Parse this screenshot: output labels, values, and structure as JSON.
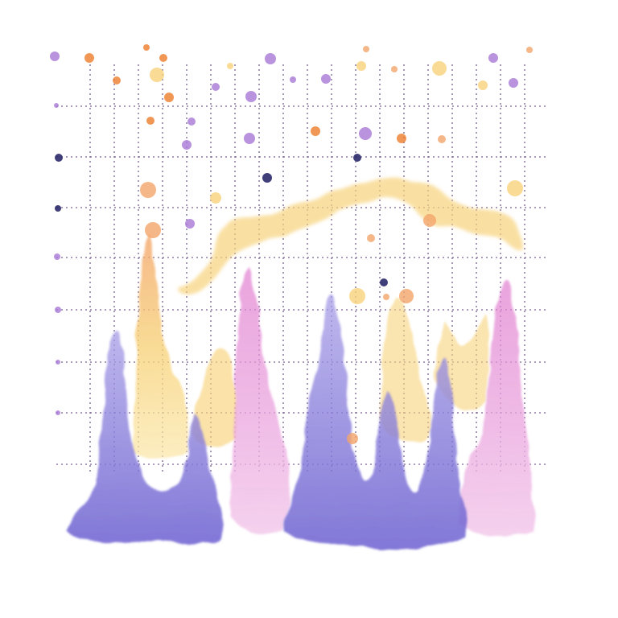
{
  "artwork": {
    "style": "watercolor",
    "background_color": "#ffffff",
    "grid_color": "#4a2d6b",
    "palette": {
      "lavender": "#8f86de",
      "lavender_dark": "#6b5fd0",
      "pink": "#e6a3dc",
      "pink_light": "#f2c6ea",
      "yellow": "#f7d27a",
      "yellow_light": "#fbe6a6",
      "peach": "#f4a56a",
      "orange": "#ee7d2c",
      "purple_dot": "#a878d6",
      "navy_dot": "#2b2a6b"
    }
  }
}
